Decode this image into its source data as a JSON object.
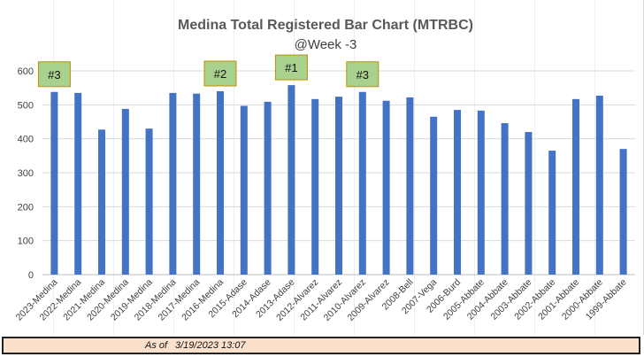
{
  "chart_data": {
    "type": "bar",
    "title": "Medina Total Registered Bar Chart (MTRBC)",
    "subtitle": "@Week -3",
    "categories": [
      "2023-Medina",
      "2022-Medina",
      "2021-Medina",
      "2020-Medina",
      "2019-Medina",
      "2018-Medina",
      "2017-Medina",
      "2016-Medina",
      "2015-Adase",
      "2014-Adase",
      "2013-Adase",
      "2012-Alvarez",
      "2011-Alvarez",
      "2010-Alvarez",
      "2009-Alvarez",
      "2008-Bell",
      "2007-Vega",
      "2006-Burd",
      "2005-Abbate",
      "2004-Abbate",
      "2003-Abbate",
      "2002-Abbate",
      "2001-Abbate",
      "2000-Abbate",
      "1999-Abbate"
    ],
    "values": [
      538,
      535,
      427,
      488,
      430,
      535,
      533,
      540,
      497,
      509,
      558,
      517,
      524,
      538,
      512,
      522,
      465,
      485,
      483,
      446,
      420,
      365,
      517,
      527,
      370
    ],
    "ylim": [
      0,
      600
    ],
    "yticks": [
      0,
      100,
      200,
      300,
      400,
      500,
      600
    ],
    "grid": true,
    "bar_color": "#4472c4",
    "annotations": [
      {
        "label": "#3",
        "category_index": 0
      },
      {
        "label": "#2",
        "category_index": 7
      },
      {
        "label": "#1",
        "category_index": 10
      },
      {
        "label": "#3",
        "category_index": 13
      }
    ],
    "annotation_fill": "#a9d18e",
    "annotation_border": "#bf9000"
  },
  "footer": {
    "label": "As of",
    "timestamp": "3/19/2023 13:07"
  }
}
